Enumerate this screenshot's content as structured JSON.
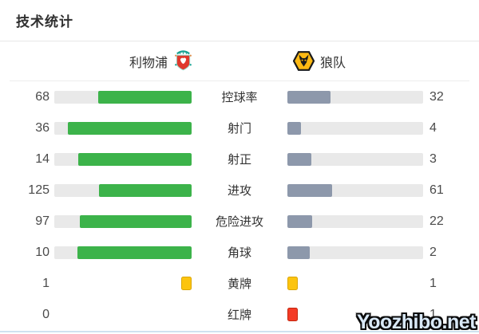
{
  "title": "技术统计",
  "teams": {
    "home": {
      "name": "利物浦"
    },
    "away": {
      "name": "狼队"
    }
  },
  "chart_data": {
    "type": "bar",
    "title": "技术统计",
    "orientation": "horizontal-paired",
    "categories": [
      "控球率",
      "射门",
      "射正",
      "进攻",
      "危险进攻",
      "角球",
      "黄牌",
      "红牌"
    ],
    "series": [
      {
        "name": "利物浦",
        "values": [
          68,
          36,
          14,
          125,
          97,
          10,
          1,
          0
        ]
      },
      {
        "name": "狼队",
        "values": [
          32,
          4,
          3,
          61,
          22,
          2,
          1,
          1
        ]
      }
    ],
    "row_style": [
      "bar",
      "bar",
      "bar",
      "bar",
      "bar",
      "bar",
      "card-yellow",
      "card-red"
    ],
    "note": "bar fill width = value / (home value + away value)"
  },
  "colors": {
    "home_bar": "#3cb34a",
    "away_bar": "#8d98ab",
    "track": "#e9e9e9",
    "yellow_card": "#fcc40f",
    "red_card": "#f43b26",
    "liverpool_red": "#e0382c",
    "liverpool_teal": "#1ba394",
    "wolves_gold": "#fdb913"
  },
  "watermark": "Yoozhibo.net"
}
